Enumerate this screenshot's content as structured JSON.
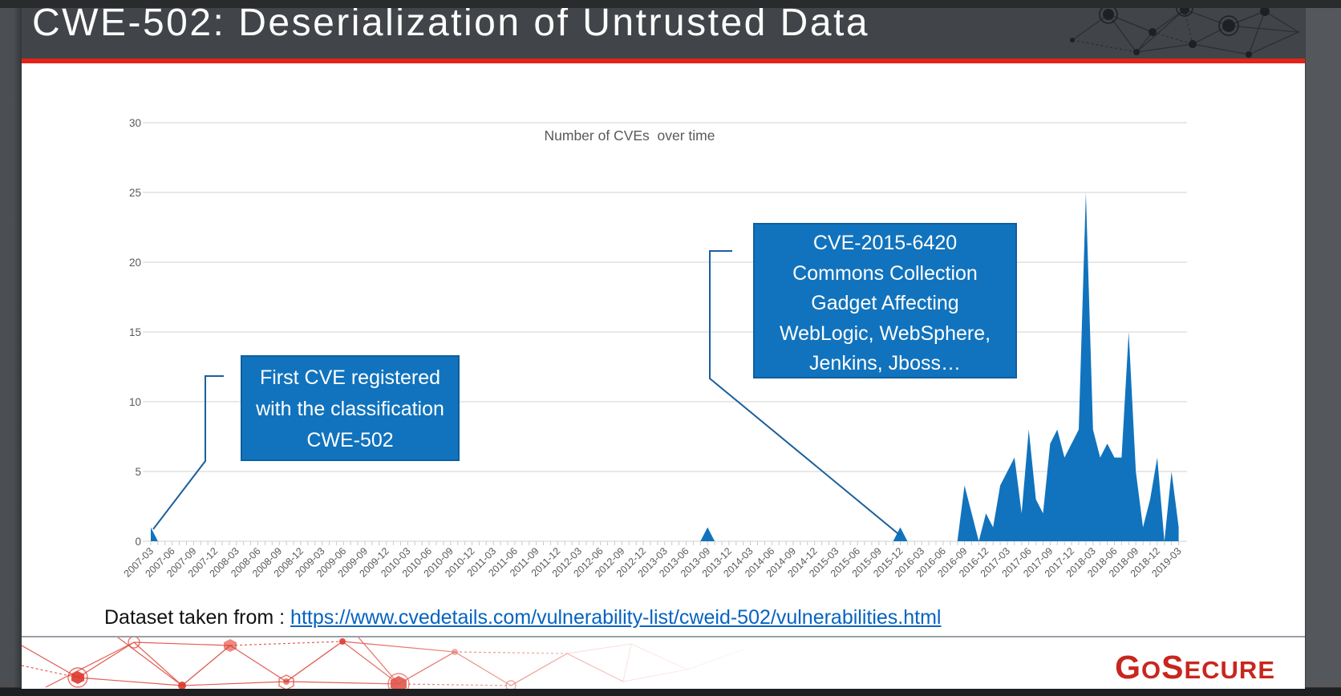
{
  "slide": {
    "title": "CWE-502: Deserialization of Untrusted Data",
    "source_line": {
      "prefix": "Dataset taken from : ",
      "link": "https://www.cvedetails.com/vulnerability-list/cweid-502/vulnerabilities.html"
    },
    "logo": {
      "name": "GoSecure",
      "parts": [
        "G",
        "O",
        "S",
        "ECURE"
      ]
    }
  },
  "annotations": [
    {
      "lines": [
        "First CVE registered",
        "with the classification",
        "CWE-502"
      ],
      "target_month": "2007-03"
    },
    {
      "lines": [
        "CVE-2015-6420",
        "Commons Collection",
        "Gadget Affecting",
        "WebLogic, WebSphere,",
        "Jenkins, Jboss…"
      ],
      "target_month": "2015-12"
    }
  ],
  "chart_data": {
    "type": "area",
    "title": "Number of CVEs  over time",
    "x_start": "2007-03",
    "x_end": "2019-03",
    "x_label_every_months": 3,
    "ylim": [
      0,
      30
    ],
    "y_ticks": [
      0,
      5,
      10,
      15,
      20,
      25,
      30
    ],
    "grid": true,
    "legend": "none",
    "series_name": "Number of CVEs",
    "color": "#1173bd",
    "default_value": 0,
    "values_by_month": {
      "2007-03": 1,
      "2013-09": 1,
      "2015-12": 1,
      "2016-09": 4,
      "2016-10": 2,
      "2016-12": 2,
      "2017-01": 1,
      "2017-02": 4,
      "2017-03": 5,
      "2017-04": 6,
      "2017-05": 2,
      "2017-06": 8,
      "2017-07": 3,
      "2017-08": 2,
      "2017-09": 7,
      "2017-10": 8,
      "2017-11": 6,
      "2017-12": 7,
      "2018-01": 8,
      "2018-02": 25,
      "2018-03": 8,
      "2018-04": 6,
      "2018-05": 7,
      "2018-06": 6,
      "2018-07": 6,
      "2018-08": 15,
      "2018-09": 5,
      "2018-10": 1,
      "2018-11": 3,
      "2018-12": 6,
      "2019-02": 5,
      "2019-03": 1
    },
    "colors": {
      "gridline": "#d9d9d9",
      "axis_text": "#595959",
      "callout_line": "#1c5f9c",
      "box_fill": "#1173bd",
      "header_red": "#e3231a",
      "logo_red": "#c8261e",
      "link_blue": "#0563c1"
    }
  }
}
